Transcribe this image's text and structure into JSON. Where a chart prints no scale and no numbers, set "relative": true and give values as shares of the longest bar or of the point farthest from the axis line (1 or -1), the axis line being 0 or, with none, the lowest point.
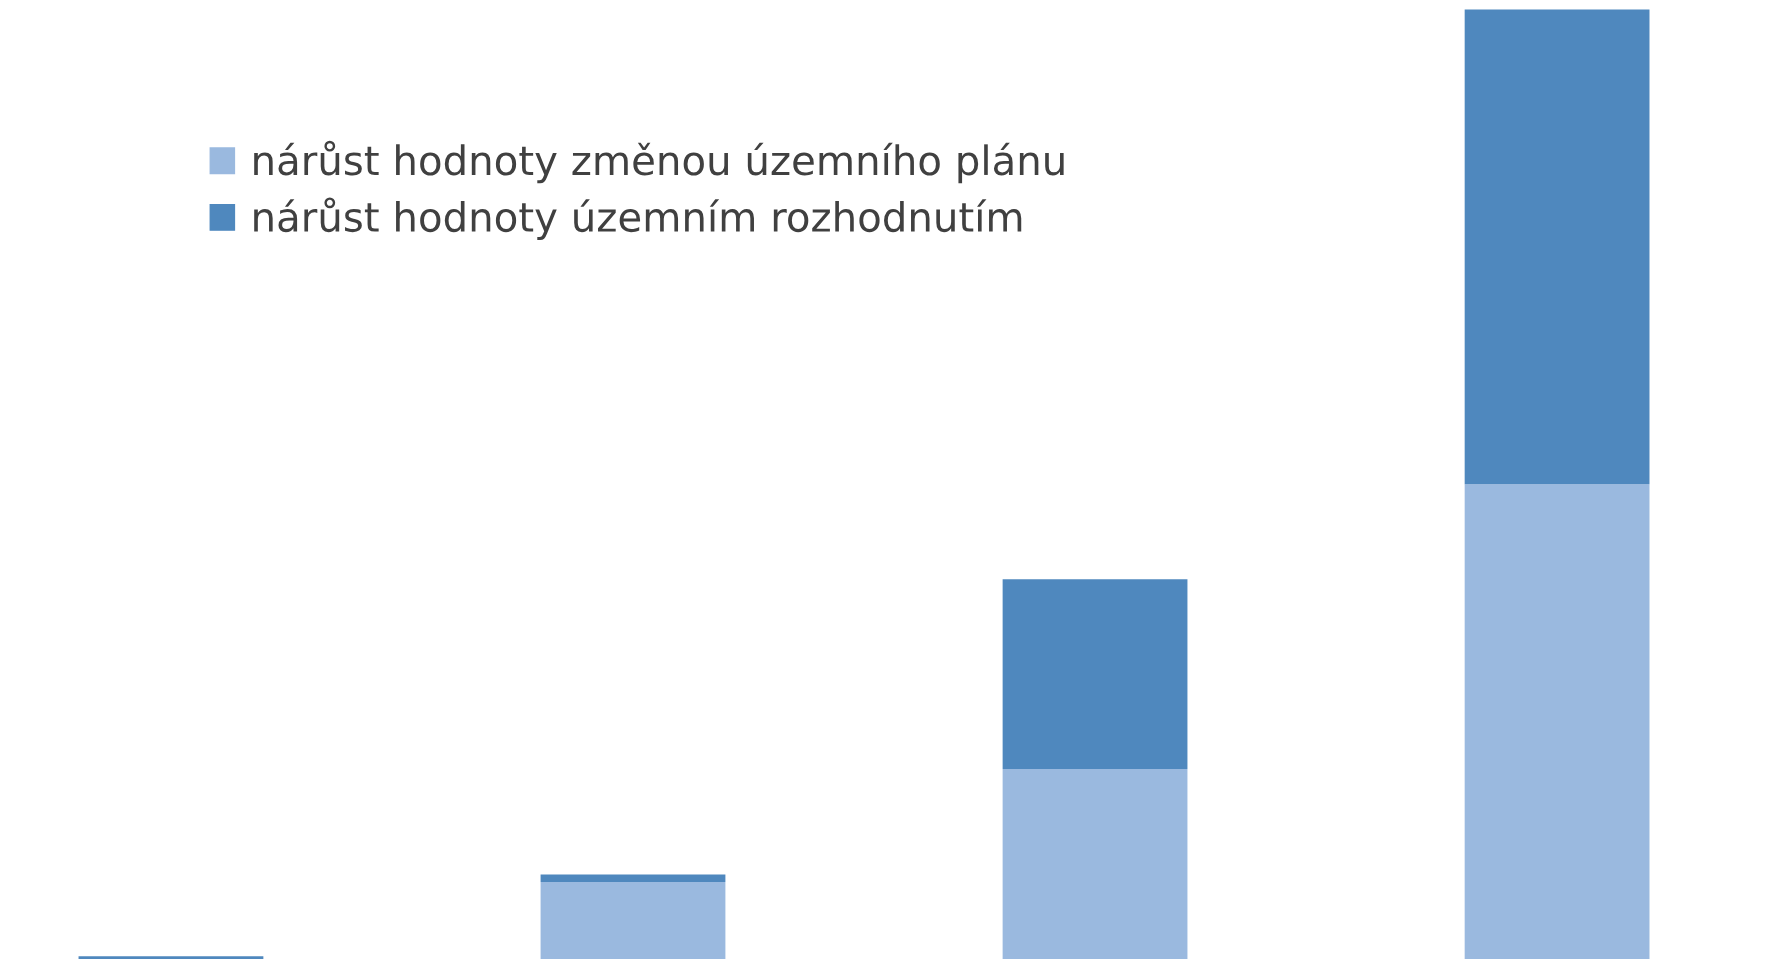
{
  "chart_data": {
    "type": "bar",
    "stacked": true,
    "relative": true,
    "categories": [
      null,
      null,
      null,
      null
    ],
    "series": [
      {
        "name": "nárůst hodnoty změnou územního plánu",
        "color": "#9ab9df",
        "values": [
          0,
          0.081,
          0.2,
          0.5
        ]
      },
      {
        "name": "nárůst hodnoty územním rozhodnutím",
        "color": "#4f88be",
        "values": [
          0.003,
          0.008,
          0.2,
          0.5
        ]
      }
    ],
    "legend": "top left",
    "grid": false
  }
}
